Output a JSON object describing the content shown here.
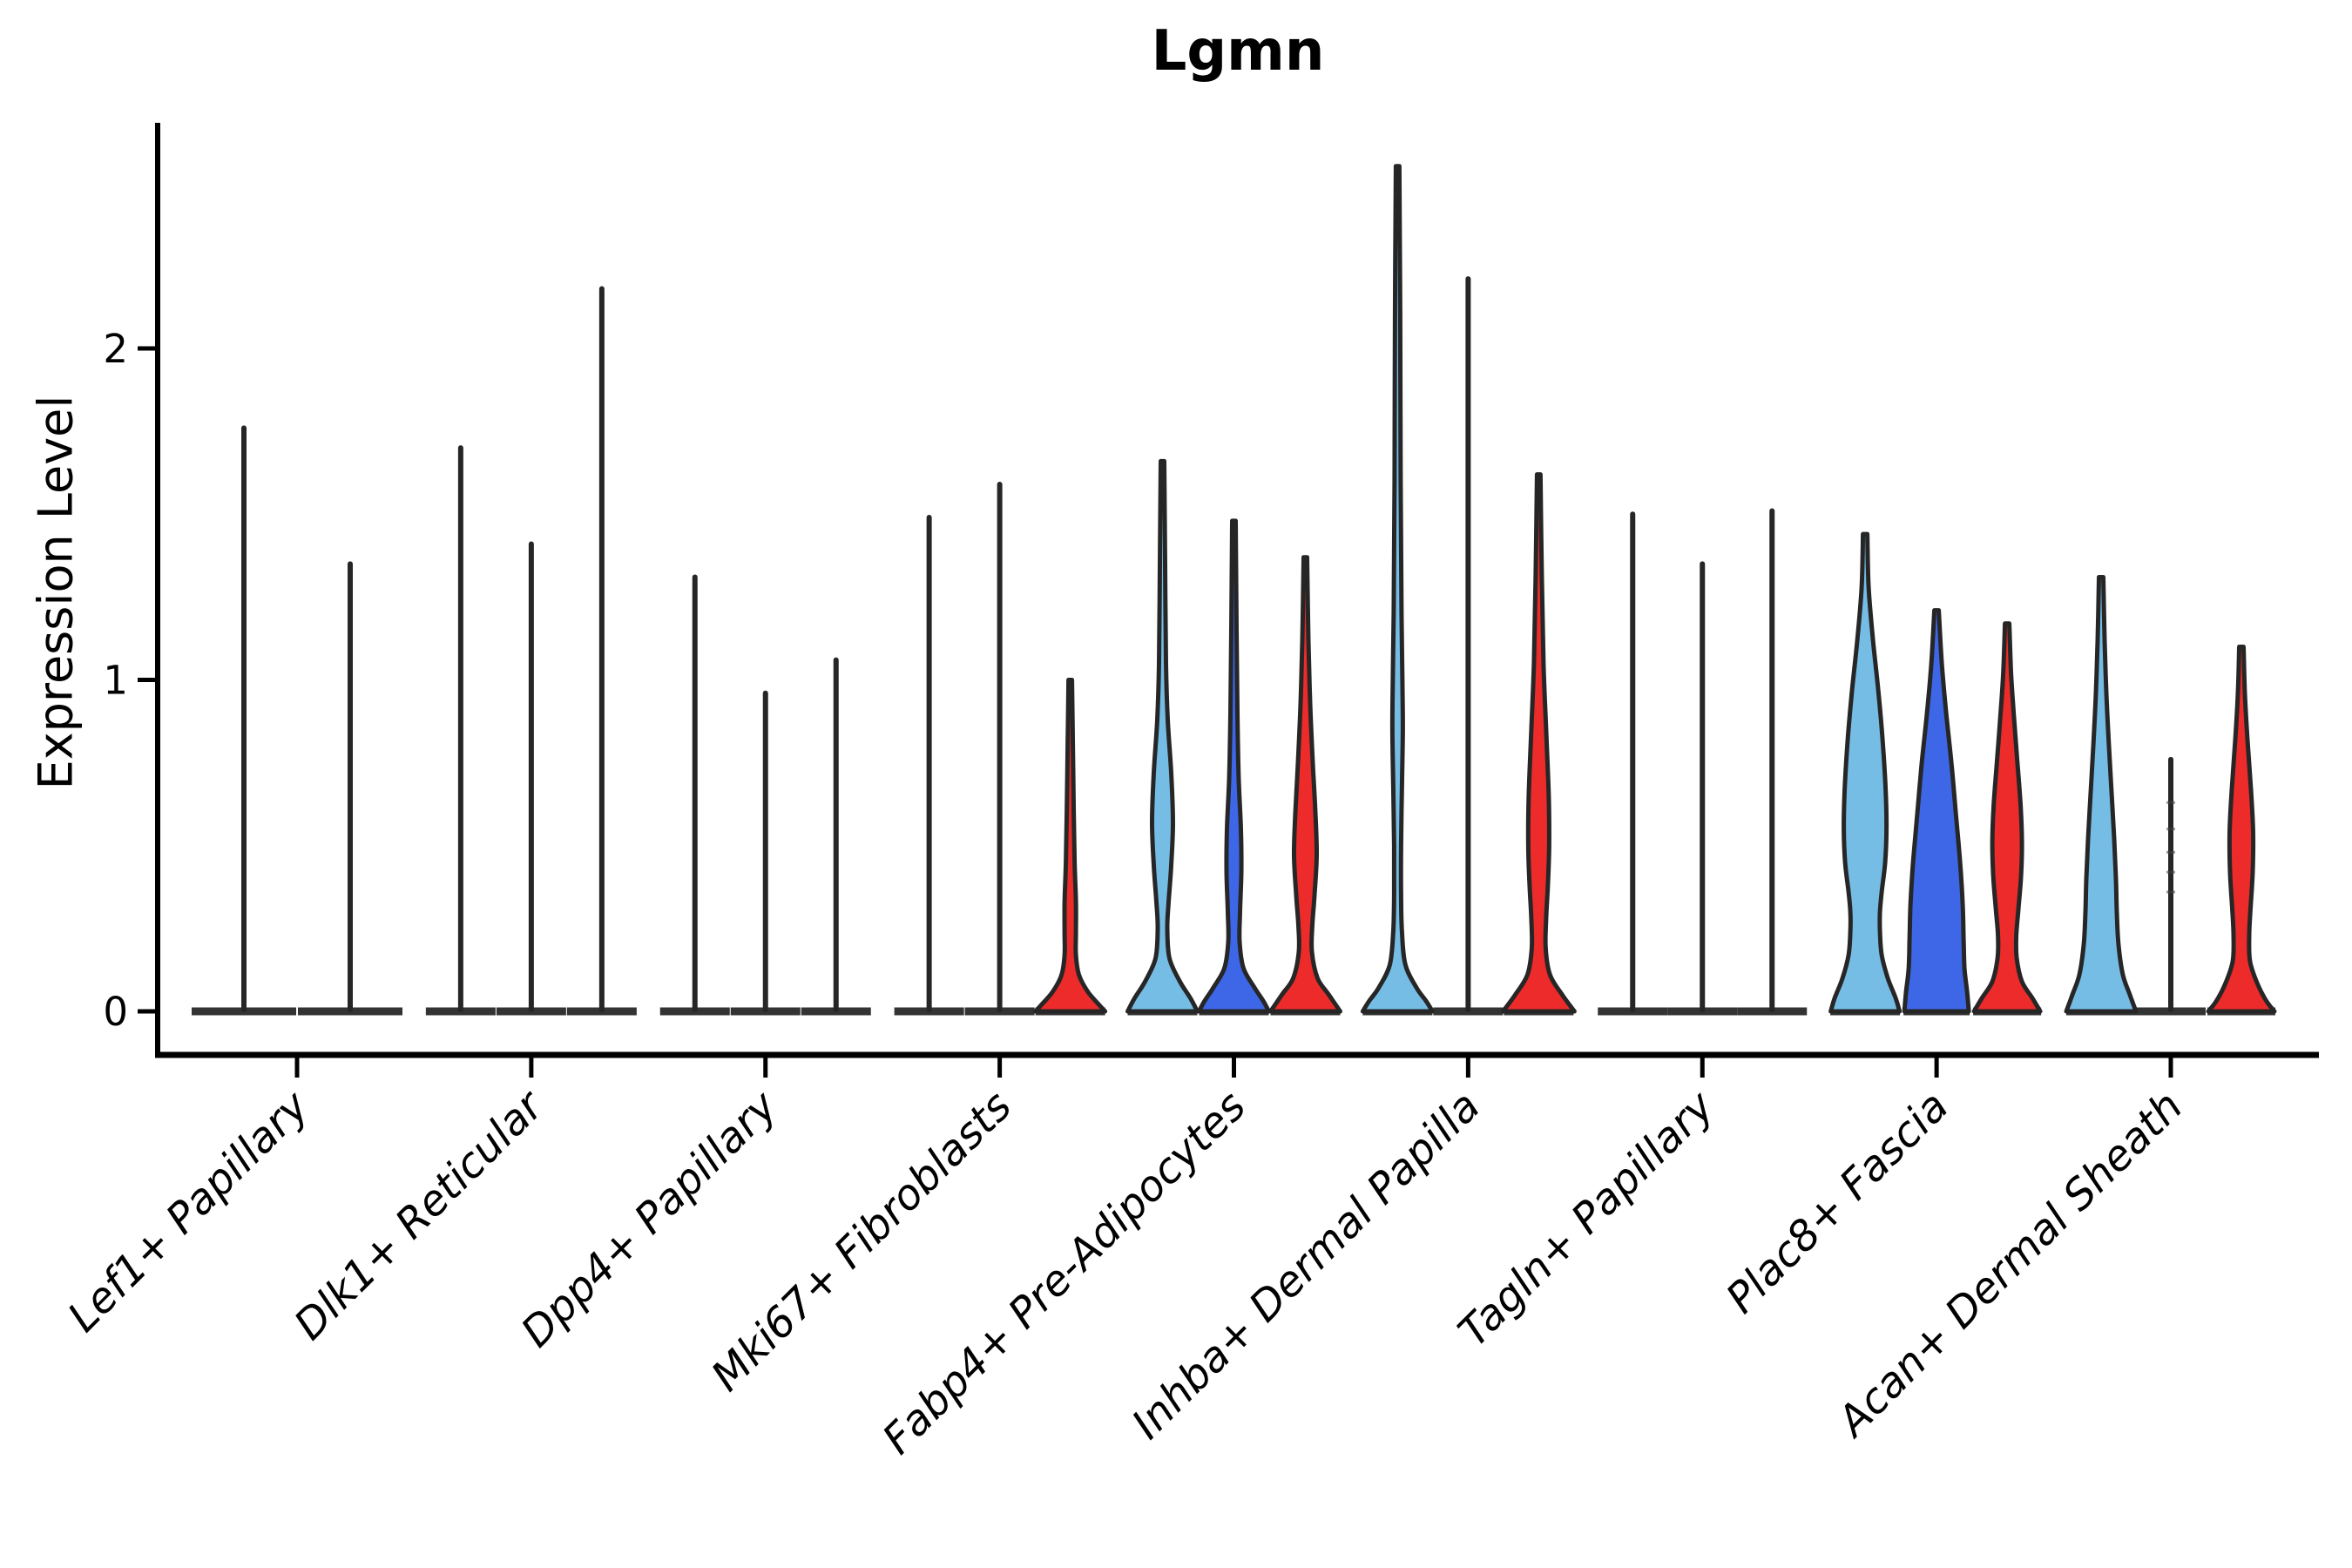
{
  "title": "Lgmn",
  "y_axis_label": "Expression Level",
  "chart_data": {
    "type": "violin",
    "title": "Lgmn",
    "ylabel": "Expression Level",
    "xlabel": "",
    "yticks": [
      0,
      1,
      2
    ],
    "ylim": [
      0,
      2.68
    ],
    "grid": false,
    "legend": "none",
    "outline_color": "#262626",
    "split_colors": {
      "lightblue": "#76BDE6",
      "blue": "#3D67E6",
      "red": "#ED2B2B"
    },
    "categories": [
      "Lef1+ Papillary",
      "Dlk1+ Reticular",
      "Dpp4+ Papillary",
      "Mki67+ Fibroblasts",
      "Fabp4+ Pre-Adipocytes",
      "Inhba+ Dermal Papilla",
      "Tagln+ Papillary",
      "Plac8+ Fascia",
      "Acan+ Dermal Sheath"
    ],
    "groups": [
      {
        "category": "Lef1+ Papillary",
        "violins": [
          {
            "offset": -61,
            "base_halfwidth": 60,
            "max": 1.76,
            "fill": null,
            "shape": []
          },
          {
            "offset": 61,
            "base_halfwidth": 60,
            "max": 1.35,
            "fill": null,
            "shape": []
          }
        ]
      },
      {
        "category": "Dlk1+ Reticular",
        "violins": [
          {
            "offset": -81,
            "base_halfwidth": 40,
            "max": 1.7,
            "fill": null,
            "shape": []
          },
          {
            "offset": 0,
            "base_halfwidth": 40,
            "max": 1.41,
            "fill": null,
            "shape": []
          },
          {
            "offset": 81,
            "base_halfwidth": 40,
            "max": 2.18,
            "fill": null,
            "shape": []
          }
        ]
      },
      {
        "category": "Dpp4+ Papillary",
        "violins": [
          {
            "offset": -81,
            "base_halfwidth": 40,
            "max": 1.31,
            "fill": null,
            "shape": []
          },
          {
            "offset": 0,
            "base_halfwidth": 40,
            "max": 0.96,
            "fill": null,
            "shape": []
          },
          {
            "offset": 81,
            "base_halfwidth": 40,
            "max": 1.06,
            "fill": null,
            "shape": []
          }
        ]
      },
      {
        "category": "Mki67+ Fibroblasts",
        "violins": [
          {
            "offset": -81,
            "base_halfwidth": 40,
            "max": 1.49,
            "fill": null,
            "shape": []
          },
          {
            "offset": 0,
            "base_halfwidth": 40,
            "max": 1.59,
            "fill": null,
            "shape": []
          },
          {
            "offset": 81,
            "base_halfwidth": 40,
            "max": 1.0,
            "fill": "red",
            "shape": [
              [
                1.0,
                2
              ],
              [
                0.8,
                3
              ],
              [
                0.6,
                4
              ],
              [
                0.45,
                5
              ],
              [
                0.33,
                6.5
              ],
              [
                0.24,
                6.5
              ],
              [
                0.17,
                6.5
              ],
              [
                0.11,
                10
              ],
              [
                0.06,
                20
              ],
              [
                0.02,
                33
              ],
              [
                0,
                40
              ]
            ]
          }
        ]
      },
      {
        "category": "Fabp4+ Pre-Adipocytes",
        "violins": [
          {
            "offset": -82,
            "base_halfwidth": 40,
            "max": 1.66,
            "fill": "lightblue",
            "shape": [
              [
                1.66,
                2
              ],
              [
                1.35,
                3
              ],
              [
                1.05,
                4
              ],
              [
                0.88,
                6
              ],
              [
                0.72,
                10
              ],
              [
                0.57,
                12
              ],
              [
                0.44,
                10
              ],
              [
                0.33,
                7
              ],
              [
                0.25,
                5.5
              ],
              [
                0.16,
                8
              ],
              [
                0.09,
                20
              ],
              [
                0.04,
                32
              ],
              [
                0,
                40
              ]
            ]
          },
          {
            "offset": 0,
            "base_halfwidth": 40,
            "max": 1.48,
            "fill": "blue",
            "shape": [
              [
                1.48,
                2
              ],
              [
                1.15,
                3
              ],
              [
                0.9,
                4
              ],
              [
                0.7,
                5.5
              ],
              [
                0.55,
                8
              ],
              [
                0.42,
                8.5
              ],
              [
                0.3,
                7
              ],
              [
                0.21,
                6.5
              ],
              [
                0.13,
                11
              ],
              [
                0.07,
                24
              ],
              [
                0.03,
                34
              ],
              [
                0,
                40
              ]
            ]
          },
          {
            "offset": 82,
            "base_halfwidth": 40,
            "max": 1.37,
            "fill": "red",
            "shape": [
              [
                1.37,
                2
              ],
              [
                1.12,
                3.5
              ],
              [
                0.93,
                5.5
              ],
              [
                0.75,
                8.5
              ],
              [
                0.6,
                11.5
              ],
              [
                0.47,
                13
              ],
              [
                0.35,
                10.5
              ],
              [
                0.26,
                8
              ],
              [
                0.18,
                7.5
              ],
              [
                0.1,
                14
              ],
              [
                0.05,
                27
              ],
              [
                0,
                40
              ]
            ]
          }
        ]
      },
      {
        "category": "Inhba+ Dermal Papilla",
        "violins": [
          {
            "offset": -81,
            "base_halfwidth": 40,
            "max": 2.55,
            "fill": "lightblue",
            "shape": [
              [
                2.55,
                2
              ],
              [
                2.1,
                3
              ],
              [
                1.6,
                3.5
              ],
              [
                1.2,
                4.5
              ],
              [
                1.0,
                5.5
              ],
              [
                0.85,
                6
              ],
              [
                0.68,
                5
              ],
              [
                0.5,
                4
              ],
              [
                0.35,
                4
              ],
              [
                0.24,
                5
              ],
              [
                0.14,
                9
              ],
              [
                0.07,
                22
              ],
              [
                0.03,
                33
              ],
              [
                0,
                40
              ]
            ]
          },
          {
            "offset": 0,
            "base_halfwidth": 40,
            "max": 2.21,
            "fill": null,
            "shape": []
          },
          {
            "offset": 81,
            "base_halfwidth": 40,
            "max": 1.62,
            "fill": "red",
            "shape": [
              [
                1.62,
                2
              ],
              [
                1.32,
                3.5
              ],
              [
                1.05,
                5.5
              ],
              [
                0.85,
                8.5
              ],
              [
                0.65,
                11.5
              ],
              [
                0.5,
                12
              ],
              [
                0.38,
                10.5
              ],
              [
                0.28,
                8.5
              ],
              [
                0.19,
                8
              ],
              [
                0.11,
                13
              ],
              [
                0.05,
                27
              ],
              [
                0,
                41
              ]
            ]
          }
        ]
      },
      {
        "category": "Tagln+ Papillary",
        "violins": [
          {
            "offset": -80,
            "base_halfwidth": 40,
            "max": 1.5,
            "fill": null,
            "shape": []
          },
          {
            "offset": 0,
            "base_halfwidth": 40,
            "max": 1.35,
            "fill": null,
            "shape": []
          },
          {
            "offset": 80,
            "base_halfwidth": 40,
            "max": 1.51,
            "fill": null,
            "shape": []
          }
        ]
      },
      {
        "category": "Plac8+ Fascia",
        "violins": [
          {
            "offset": -82,
            "base_halfwidth": 40,
            "max": 1.44,
            "fill": "lightblue",
            "shape": [
              [
                1.44,
                2.5
              ],
              [
                1.28,
                4
              ],
              [
                1.12,
                9
              ],
              [
                0.97,
                15
              ],
              [
                0.82,
                20
              ],
              [
                0.67,
                23.5
              ],
              [
                0.55,
                24.5
              ],
              [
                0.45,
                23
              ],
              [
                0.36,
                19
              ],
              [
                0.3,
                17
              ],
              [
                0.24,
                17
              ],
              [
                0.17,
                19
              ],
              [
                0.1,
                26
              ],
              [
                0.04,
                35
              ],
              [
                0,
                39.5
              ]
            ]
          },
          {
            "offset": 0,
            "base_halfwidth": 38,
            "max": 1.21,
            "fill": "blue",
            "shape": [
              [
                1.21,
                2.5
              ],
              [
                1.05,
                6
              ],
              [
                0.9,
                11
              ],
              [
                0.75,
                17
              ],
              [
                0.6,
                22
              ],
              [
                0.45,
                27
              ],
              [
                0.32,
                30
              ],
              [
                0.22,
                31
              ],
              [
                0.13,
                32
              ],
              [
                0.06,
                35
              ],
              [
                0,
                37
              ]
            ]
          },
          {
            "offset": 81,
            "base_halfwidth": 39,
            "max": 1.17,
            "fill": "red",
            "shape": [
              [
                1.17,
                2.5
              ],
              [
                1.02,
                4.5
              ],
              [
                0.9,
                7.5
              ],
              [
                0.76,
                11.5
              ],
              [
                0.62,
                15.5
              ],
              [
                0.51,
                17
              ],
              [
                0.41,
                16
              ],
              [
                0.31,
                13
              ],
              [
                0.23,
                10.5
              ],
              [
                0.16,
                11
              ],
              [
                0.09,
                17
              ],
              [
                0.04,
                29
              ],
              [
                0,
                38
              ]
            ]
          }
        ]
      },
      {
        "category": "Acan+ Dermal Sheath",
        "violins": [
          {
            "offset": -80,
            "base_halfwidth": 40,
            "max": 1.31,
            "fill": "lightblue",
            "shape": [
              [
                1.31,
                2.5
              ],
              [
                1.12,
                4
              ],
              [
                0.96,
                6
              ],
              [
                0.8,
                9
              ],
              [
                0.66,
                12
              ],
              [
                0.52,
                15
              ],
              [
                0.4,
                17
              ],
              [
                0.3,
                18
              ],
              [
                0.2,
                20
              ],
              [
                0.11,
                25
              ],
              [
                0.05,
                33
              ],
              [
                0,
                40
              ]
            ]
          },
          {
            "offset": 0,
            "base_halfwidth": 40,
            "max": 0.76,
            "fill": null,
            "shape": [],
            "marks": [
              0.63,
              0.55,
              0.48,
              0.42,
              0.36
            ]
          },
          {
            "offset": 81,
            "base_halfwidth": 39,
            "max": 1.1,
            "fill": "red",
            "shape": [
              [
                1.1,
                2.5
              ],
              [
                0.96,
                4
              ],
              [
                0.82,
                7
              ],
              [
                0.67,
                11
              ],
              [
                0.54,
                13.5
              ],
              [
                0.42,
                13
              ],
              [
                0.31,
                10.5
              ],
              [
                0.23,
                9
              ],
              [
                0.15,
                10
              ],
              [
                0.08,
                19
              ],
              [
                0.03,
                29
              ],
              [
                0,
                38
              ]
            ]
          }
        ]
      }
    ]
  }
}
